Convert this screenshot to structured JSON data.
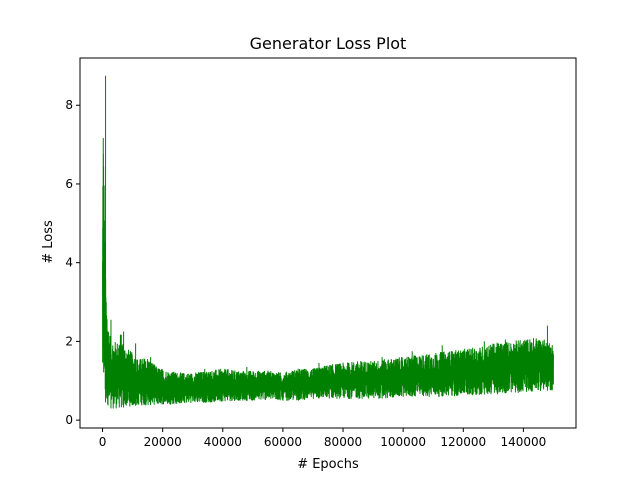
{
  "chart_data": {
    "type": "line",
    "title": "Generator Loss Plot",
    "xlabel": "# Epochs",
    "ylabel": "# Loss",
    "xlim": [
      -7500,
      157500
    ],
    "ylim": [
      -0.2,
      9.2
    ],
    "xticks": [
      0,
      20000,
      40000,
      60000,
      80000,
      100000,
      120000,
      140000
    ],
    "xtick_labels": [
      "0",
      "20000",
      "40000",
      "60000",
      "80000",
      "100000",
      "120000",
      "140000"
    ],
    "yticks": [
      0,
      2,
      4,
      6,
      8
    ],
    "ytick_labels": [
      "0",
      "2",
      "4",
      "6",
      "8"
    ],
    "grid": false,
    "legend": false,
    "series": [
      {
        "color": "#008000",
        "x": [
          0,
          200,
          400,
          600,
          800,
          1000,
          1300,
          1600,
          2000,
          2500,
          3000,
          3500,
          4000,
          5000,
          6000,
          7000,
          8000,
          10000,
          12000,
          15000,
          18000,
          22000,
          26000,
          30000,
          35000,
          40000,
          45000,
          50000,
          55000,
          60000,
          65000,
          70000,
          75000,
          80000,
          85000,
          90000,
          95000,
          100000,
          105000,
          110000,
          115000,
          120000,
          125000,
          130000,
          135000,
          140000,
          145000,
          150000
        ],
        "y_high": [
          4.8,
          8.75,
          6.6,
          6.2,
          4.2,
          3.7,
          3.1,
          2.9,
          2.4,
          2.2,
          2.05,
          2.1,
          2.0,
          2.0,
          2.25,
          1.95,
          1.85,
          1.7,
          1.55,
          1.6,
          1.35,
          1.25,
          1.2,
          1.2,
          1.25,
          1.3,
          1.25,
          1.25,
          1.25,
          1.2,
          1.3,
          1.3,
          1.4,
          1.45,
          1.5,
          1.5,
          1.55,
          1.6,
          1.65,
          1.7,
          1.75,
          1.8,
          1.85,
          1.95,
          2.0,
          2.05,
          2.1,
          1.95
        ],
        "y_low": [
          0.7,
          0.6,
          0.55,
          0.5,
          0.45,
          0.45,
          0.45,
          0.4,
          0.35,
          0.3,
          0.3,
          0.3,
          0.3,
          0.3,
          0.3,
          0.32,
          0.35,
          0.35,
          0.38,
          0.38,
          0.4,
          0.4,
          0.42,
          0.45,
          0.45,
          0.48,
          0.5,
          0.5,
          0.52,
          0.5,
          0.5,
          0.55,
          0.55,
          0.55,
          0.55,
          0.55,
          0.55,
          0.6,
          0.6,
          0.6,
          0.6,
          0.62,
          0.65,
          0.65,
          0.7,
          0.7,
          0.75,
          0.75
        ],
        "spikes": [
          [
            1000,
            8.75
          ],
          [
            2800,
            2.55
          ],
          [
            7000,
            2.25
          ],
          [
            11000,
            1.95
          ],
          [
            16000,
            1.6
          ],
          [
            34000,
            1.3
          ],
          [
            48000,
            1.35
          ],
          [
            72000,
            1.45
          ],
          [
            93000,
            1.6
          ],
          [
            103000,
            1.75
          ],
          [
            113000,
            1.9
          ],
          [
            127000,
            2.0
          ],
          [
            134000,
            2.05
          ],
          [
            148000,
            2.4
          ]
        ]
      }
    ]
  }
}
